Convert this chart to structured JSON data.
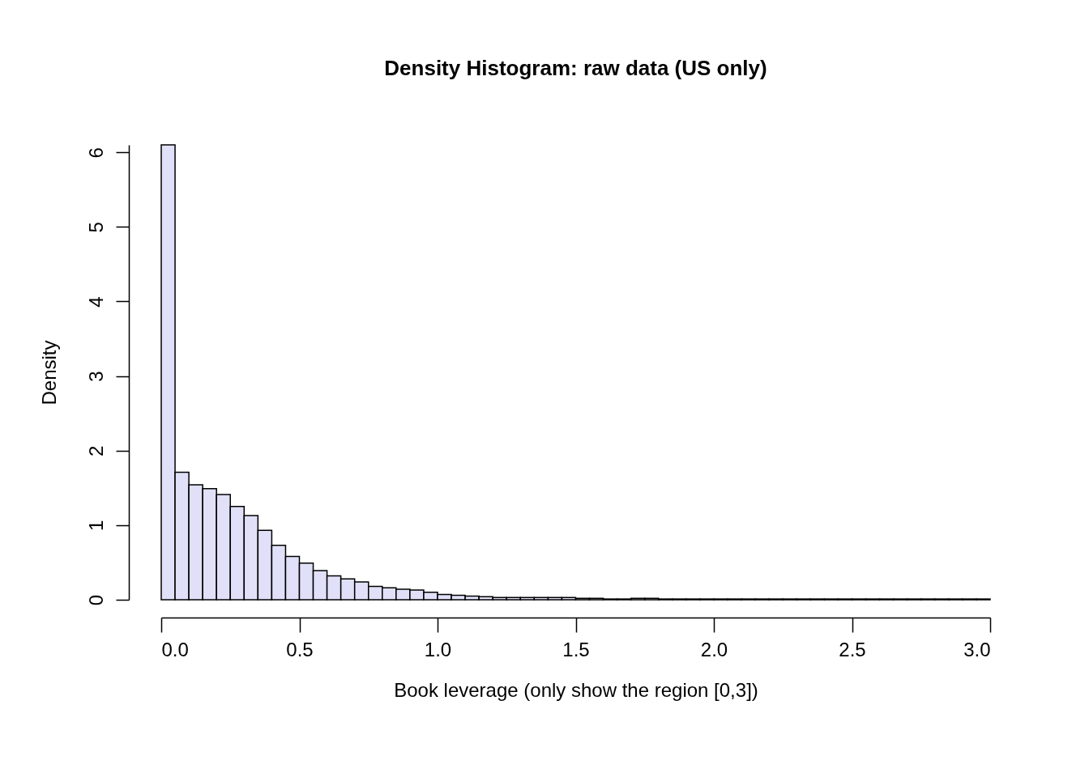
{
  "chart_data": {
    "type": "histogram",
    "title": "Density Histogram: raw data (US only)",
    "xlabel": "Book leverage (only show the region [0,3])",
    "ylabel": "Density",
    "color": "#e0e0f8",
    "bins": [
      0,
      0.05,
      0.1,
      0.15,
      0.2,
      0.25,
      0.3,
      0.35,
      0.4,
      0.45,
      0.5,
      0.55,
      0.6,
      0.65,
      0.7,
      0.75,
      0.8,
      0.85,
      0.9,
      0.95,
      1.0,
      1.05,
      1.1,
      1.15,
      1.2,
      1.25,
      1.3,
      1.35,
      1.4,
      1.45,
      1.5,
      1.55,
      1.6,
      1.65,
      1.7,
      1.75,
      1.8,
      1.85,
      1.9,
      1.95,
      2.0,
      2.05,
      2.1,
      2.15,
      2.2,
      2.25,
      2.3,
      2.35,
      2.4,
      2.45,
      2.5,
      2.55,
      2.6,
      2.65,
      2.7,
      2.75,
      2.8,
      2.85,
      2.9,
      2.95,
      3.0
    ],
    "values": [
      6.1,
      1.71,
      1.54,
      1.49,
      1.41,
      1.25,
      1.13,
      0.93,
      0.73,
      0.58,
      0.49,
      0.39,
      0.32,
      0.28,
      0.24,
      0.18,
      0.16,
      0.14,
      0.13,
      0.1,
      0.07,
      0.06,
      0.05,
      0.04,
      0.03,
      0.03,
      0.03,
      0.03,
      0.03,
      0.03,
      0.02,
      0.02,
      0.01,
      0.01,
      0.02,
      0.02,
      0.01,
      0.01,
      0.01,
      0.01,
      0.01,
      0.01,
      0.01,
      0.01,
      0.01,
      0.01,
      0.01,
      0.01,
      0.01,
      0.01,
      0.01,
      0.01,
      0.01,
      0.01,
      0.01,
      0.01,
      0.01,
      0.01,
      0.01,
      0.01
    ],
    "xlim": [
      0,
      3
    ],
    "xticks": [
      {
        "value": 0,
        "label": "0.0"
      },
      {
        "value": 0.5,
        "label": "0.5"
      },
      {
        "value": 1,
        "label": "1.0"
      },
      {
        "value": 1.5,
        "label": "1.5"
      },
      {
        "value": 2,
        "label": "2.0"
      },
      {
        "value": 2.5,
        "label": "2.5"
      },
      {
        "value": 3,
        "label": "3.0"
      }
    ],
    "ylim": [
      0,
      6.1
    ],
    "yticks": [
      0,
      1,
      2,
      3,
      4,
      5,
      6
    ],
    "grid": false
  }
}
